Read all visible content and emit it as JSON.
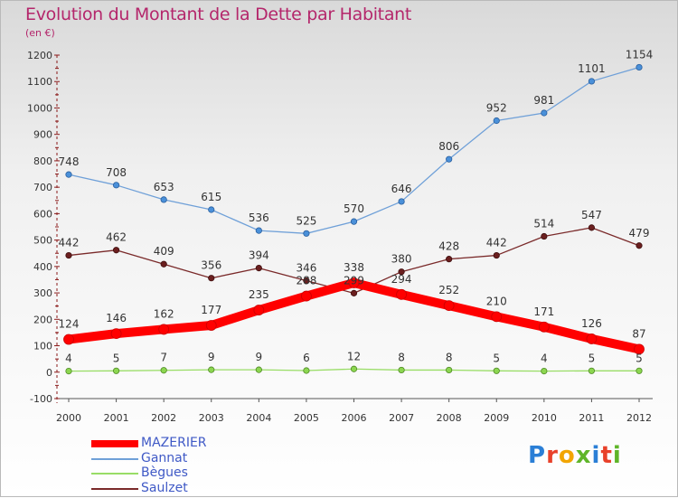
{
  "header": {
    "title": "Evolution du Montant de la Dette par Habitant",
    "subtitle": "(en €)"
  },
  "brand": {
    "text": "Proxiti",
    "colors": [
      "#2b7fd6",
      "#e8412a",
      "#f2a500",
      "#5fb529",
      "#2b7fd6",
      "#e8412a",
      "#5fb529"
    ]
  },
  "chart_data": {
    "type": "line",
    "title": "Evolution du Montant de la Dette par Habitant",
    "subtitle": "(en €)",
    "x": [
      2000,
      2001,
      2002,
      2003,
      2004,
      2005,
      2006,
      2007,
      2008,
      2009,
      2010,
      2011,
      2012
    ],
    "ylim": [
      -100,
      1200
    ],
    "yticks": [
      -100,
      0,
      100,
      200,
      300,
      400,
      500,
      600,
      700,
      800,
      900,
      1000,
      1100,
      1200
    ],
    "grid": false,
    "legend_position": "bottom-left",
    "series": [
      {
        "name": "MAZERIER",
        "color": "#ff0000",
        "values": [
          124,
          146,
          162,
          177,
          235,
          288,
          338,
          294,
          252,
          210,
          171,
          126,
          87
        ]
      },
      {
        "name": "Gannat",
        "color": "#6fa0d8",
        "values": [
          748,
          708,
          653,
          615,
          536,
          525,
          570,
          646,
          806,
          952,
          981,
          1101,
          1154
        ]
      },
      {
        "name": "Bègues",
        "color": "#99dd66",
        "values": [
          4,
          5,
          7,
          9,
          9,
          6,
          12,
          8,
          8,
          5,
          4,
          5,
          5
        ]
      },
      {
        "name": "Saulzet",
        "color": "#7a2a2a",
        "values": [
          442,
          462,
          409,
          356,
          394,
          346,
          299,
          380,
          428,
          442,
          514,
          547,
          479
        ]
      }
    ]
  }
}
